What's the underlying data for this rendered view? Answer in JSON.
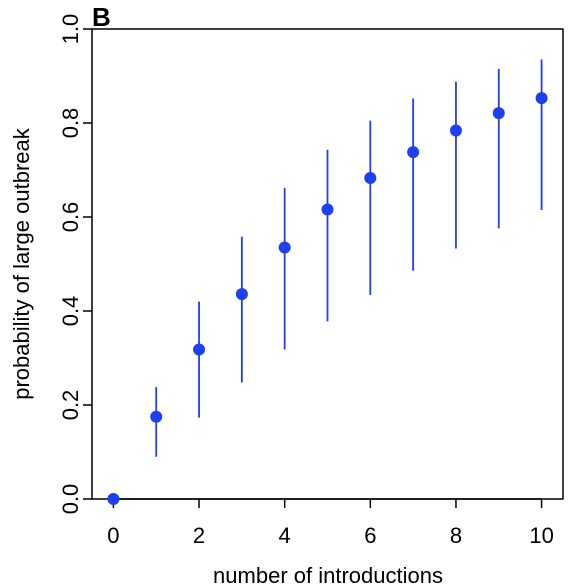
{
  "chart_data": {
    "type": "scatter",
    "panel_label": "B",
    "xlabel": "number of introductions",
    "ylabel": "probability of large outbreak",
    "xlim": [
      -0.5,
      10.5
    ],
    "ylim": [
      0,
      1
    ],
    "x_ticks": [
      0,
      2,
      4,
      6,
      8,
      10
    ],
    "x_tick_labels": [
      "0",
      "2",
      "4",
      "6",
      "8",
      "10"
    ],
    "y_ticks": [
      0,
      0.2,
      0.4,
      0.6,
      0.8,
      1.0
    ],
    "y_tick_labels": [
      "0.0",
      "0.2",
      "0.4",
      "0.6",
      "0.8",
      "1.0"
    ],
    "grid": false,
    "color": "#1f3ff2",
    "series": [
      {
        "x": [
          0,
          1,
          2,
          3,
          4,
          5,
          6,
          7,
          8,
          9,
          10
        ],
        "y": [
          0.0,
          0.175,
          0.318,
          0.436,
          0.535,
          0.616,
          0.683,
          0.738,
          0.784,
          0.821,
          0.853
        ],
        "lower": [
          0.0,
          0.09,
          0.173,
          0.248,
          0.318,
          0.378,
          0.434,
          0.486,
          0.533,
          0.576,
          0.615
        ],
        "upper": [
          0.0,
          0.238,
          0.42,
          0.558,
          0.662,
          0.743,
          0.805,
          0.852,
          0.888,
          0.915,
          0.935
        ]
      }
    ]
  }
}
